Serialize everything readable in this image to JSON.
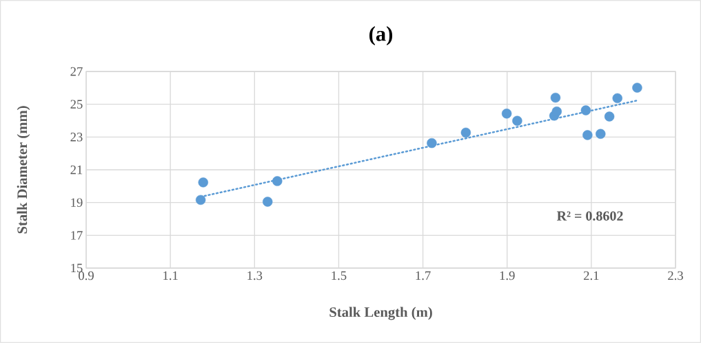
{
  "chart_data": {
    "type": "scatter",
    "title": "(a)",
    "xlabel": "Stalk Length (m)",
    "ylabel": "Stalk Diameter (mm)",
    "series": [
      {
        "color": "#5b9bd5",
        "marker": "circle",
        "x": [
          1.172,
          1.178,
          1.331,
          1.354,
          1.721,
          1.802,
          1.899,
          1.924,
          2.012,
          2.015,
          2.018,
          2.087,
          2.091,
          2.122,
          2.143,
          2.162,
          2.209
        ],
        "values": [
          19.16,
          20.23,
          19.05,
          20.31,
          22.63,
          23.27,
          24.43,
          23.99,
          24.3,
          25.4,
          24.56,
          24.63,
          23.12,
          23.19,
          24.25,
          25.37,
          26.01
        ]
      },
      {
        "type": "line",
        "color": "#5b9bd5",
        "line_style": "dotted",
        "marker": "none",
        "x": [
          1.172,
          2.209
        ],
        "values": [
          19.35,
          25.23
        ]
      }
    ],
    "grid": true,
    "xlim": [
      0.9,
      2.3
    ],
    "xticks": [
      0.9,
      1.1,
      1.3,
      1.5,
      1.7,
      1.9,
      2.1,
      2.3
    ],
    "ylim": [
      15,
      27
    ],
    "yticks": [
      15,
      17,
      19,
      21,
      23,
      25,
      27
    ],
    "annotations": [
      "R² = 0.8602"
    ]
  }
}
